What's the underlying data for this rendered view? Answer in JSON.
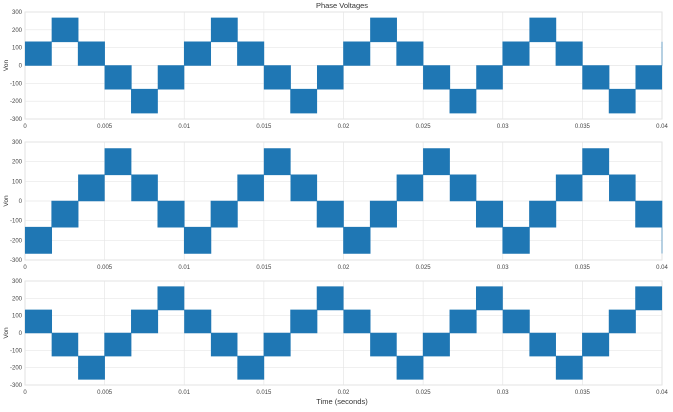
{
  "figure": {
    "title": "Phase Voltages",
    "xlabel": "Time (seconds)"
  },
  "chart_data": [
    {
      "type": "line",
      "title": "Phase Voltages",
      "xlabel": "",
      "ylabel": "Von",
      "xlim": [
        0,
        0.04
      ],
      "ylim": [
        -300,
        300
      ],
      "x_ticks": [
        0,
        0.005,
        0.01,
        0.015,
        0.02,
        0.025,
        0.03,
        0.035,
        0.04
      ],
      "x_tick_labels": [
        "0",
        "0.005",
        "0.01",
        "0.015",
        "0.02",
        "0.025",
        "0.03",
        "0.035",
        "0.04"
      ],
      "y_ticks": [
        -300,
        -200,
        -100,
        0,
        100,
        200,
        300
      ],
      "y_tick_labels": [
        "-300",
        "-200",
        "-100",
        "0",
        "100",
        "200",
        "300"
      ],
      "grid": true,
      "series_color": "#1f77b4",
      "series": [
        {
          "waveform": "six-step PWM phase voltage",
          "levels": [
            -267,
            -133,
            0,
            133,
            267
          ],
          "fundamental_hz": 100,
          "phase_shift_deg": 0
        }
      ]
    },
    {
      "type": "line",
      "title": "",
      "xlabel": "",
      "ylabel": "Von",
      "xlim": [
        0,
        0.04
      ],
      "ylim": [
        -300,
        300
      ],
      "x_ticks": [
        0,
        0.005,
        0.01,
        0.015,
        0.02,
        0.025,
        0.03,
        0.035,
        0.04
      ],
      "x_tick_labels": [
        "0",
        "0.005",
        "0.01",
        "0.015",
        "0.02",
        "0.025",
        "0.03",
        "0.035",
        "0.04"
      ],
      "y_ticks": [
        -300,
        -200,
        -100,
        0,
        100,
        200,
        300
      ],
      "y_tick_labels": [
        "-300",
        "-200",
        "-100",
        "0",
        "100",
        "200",
        "300"
      ],
      "grid": true,
      "series_color": "#1f77b4",
      "series": [
        {
          "waveform": "six-step PWM phase voltage",
          "levels": [
            -267,
            -133,
            0,
            133,
            267
          ],
          "fundamental_hz": 100,
          "phase_shift_deg": 120
        }
      ]
    },
    {
      "type": "line",
      "title": "",
      "xlabel": "Time (seconds)",
      "ylabel": "Von",
      "xlim": [
        0,
        0.04
      ],
      "ylim": [
        -300,
        300
      ],
      "x_ticks": [
        0,
        0.005,
        0.01,
        0.015,
        0.02,
        0.025,
        0.03,
        0.035,
        0.04
      ],
      "x_tick_labels": [
        "0",
        "0.005",
        "0.01",
        "0.015",
        "0.02",
        "0.025",
        "0.03",
        "0.035",
        "0.04"
      ],
      "y_ticks": [
        -300,
        -200,
        -100,
        0,
        100,
        200,
        300
      ],
      "y_tick_labels": [
        "-300",
        "-200",
        "-100",
        "0",
        "100",
        "200",
        "300"
      ],
      "grid": true,
      "series_color": "#1f77b4",
      "series": [
        {
          "waveform": "six-step PWM phase voltage",
          "levels": [
            -267,
            -133,
            0,
            133,
            267
          ],
          "fundamental_hz": 100,
          "phase_shift_deg": 240
        }
      ]
    }
  ]
}
